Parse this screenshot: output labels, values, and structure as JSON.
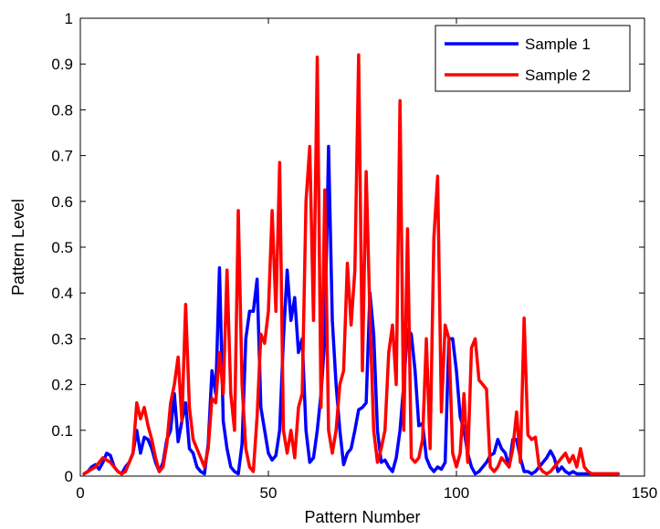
{
  "chart_data": {
    "type": "line",
    "title": "",
    "xlabel": "Pattern Number",
    "ylabel": "Pattern Level",
    "xlim": [
      0,
      150
    ],
    "ylim": [
      0,
      1
    ],
    "xticks": [
      0,
      50,
      100,
      150
    ],
    "yticks": [
      0,
      0.1,
      0.2,
      0.3,
      0.4,
      0.5,
      0.6,
      0.7,
      0.8,
      0.9,
      1
    ],
    "ytick_labels": [
      "0",
      "0.1",
      "0.2",
      "0.3",
      "0.4",
      "0.5",
      "0.6",
      "0.7",
      "0.8",
      "0.9",
      "1"
    ],
    "grid": false,
    "legend_position": "top-right",
    "series": [
      {
        "name": "Sample 1",
        "color": "#0000ff",
        "x": [
          1,
          2,
          3,
          4,
          5,
          6,
          7,
          8,
          9,
          10,
          11,
          12,
          13,
          14,
          15,
          16,
          17,
          18,
          19,
          20,
          21,
          22,
          23,
          24,
          25,
          26,
          27,
          28,
          29,
          30,
          31,
          32,
          33,
          34,
          35,
          36,
          37,
          38,
          39,
          40,
          41,
          42,
          43,
          44,
          45,
          46,
          47,
          48,
          49,
          50,
          51,
          52,
          53,
          54,
          55,
          56,
          57,
          58,
          59,
          60,
          61,
          62,
          63,
          64,
          65,
          66,
          67,
          68,
          69,
          70,
          71,
          72,
          73,
          74,
          75,
          76,
          77,
          78,
          79,
          80,
          81,
          82,
          83,
          84,
          85,
          86,
          87,
          88,
          89,
          90,
          91,
          92,
          93,
          94,
          95,
          96,
          97,
          98,
          99,
          100,
          101,
          102,
          103,
          104,
          105,
          106,
          107,
          108,
          109,
          110,
          111,
          112,
          113,
          114,
          115,
          116,
          117,
          118,
          119,
          120,
          121,
          122,
          123,
          124,
          125,
          126,
          127,
          128,
          129,
          130,
          131,
          132,
          133,
          134,
          135,
          136,
          137,
          138,
          139,
          140,
          141,
          142,
          143
        ],
        "values": [
          0.005,
          0.01,
          0.02,
          0.025,
          0.015,
          0.03,
          0.05,
          0.045,
          0.02,
          0.01,
          0.005,
          0.02,
          0.03,
          0.05,
          0.1,
          0.05,
          0.085,
          0.08,
          0.06,
          0.03,
          0.01,
          0.03,
          0.08,
          0.1,
          0.18,
          0.075,
          0.12,
          0.16,
          0.06,
          0.05,
          0.02,
          0.01,
          0.005,
          0.07,
          0.23,
          0.18,
          0.455,
          0.12,
          0.06,
          0.02,
          0.01,
          0.005,
          0.07,
          0.3,
          0.36,
          0.36,
          0.43,
          0.15,
          0.1,
          0.05,
          0.035,
          0.045,
          0.1,
          0.3,
          0.45,
          0.34,
          0.39,
          0.27,
          0.3,
          0.1,
          0.03,
          0.04,
          0.1,
          0.18,
          0.3,
          0.72,
          0.34,
          0.2,
          0.1,
          0.025,
          0.05,
          0.06,
          0.1,
          0.145,
          0.15,
          0.16,
          0.4,
          0.31,
          0.1,
          0.03,
          0.035,
          0.02,
          0.01,
          0.04,
          0.1,
          0.2,
          0.32,
          0.31,
          0.23,
          0.11,
          0.115,
          0.04,
          0.02,
          0.01,
          0.02,
          0.015,
          0.03,
          0.3,
          0.3,
          0.23,
          0.13,
          0.1,
          0.05,
          0.02,
          0.005,
          0.01,
          0.02,
          0.03,
          0.045,
          0.05,
          0.08,
          0.06,
          0.05,
          0.02,
          0.08,
          0.08,
          0.04,
          0.01,
          0.01,
          0.005,
          0.01,
          0.02,
          0.03,
          0.04,
          0.055,
          0.04,
          0.01,
          0.02,
          0.01,
          0.005,
          0.01,
          0.005,
          0.005,
          0.005,
          0.005,
          0.005,
          0.005,
          0.005,
          0.005,
          0.005,
          0.005,
          0.005,
          0.005
        ]
      },
      {
        "name": "Sample 2",
        "color": "#ff0000",
        "x": [
          1,
          2,
          3,
          4,
          5,
          6,
          7,
          8,
          9,
          10,
          11,
          12,
          13,
          14,
          15,
          16,
          17,
          18,
          19,
          20,
          21,
          22,
          23,
          24,
          25,
          26,
          27,
          28,
          29,
          30,
          31,
          32,
          33,
          34,
          35,
          36,
          37,
          38,
          39,
          40,
          41,
          42,
          43,
          44,
          45,
          46,
          47,
          48,
          49,
          50,
          51,
          52,
          53,
          54,
          55,
          56,
          57,
          58,
          59,
          60,
          61,
          62,
          63,
          64,
          65,
          66,
          67,
          68,
          69,
          70,
          71,
          72,
          73,
          74,
          75,
          76,
          77,
          78,
          79,
          80,
          81,
          82,
          83,
          84,
          85,
          86,
          87,
          88,
          89,
          90,
          91,
          92,
          93,
          94,
          95,
          96,
          97,
          98,
          99,
          100,
          101,
          102,
          103,
          104,
          105,
          106,
          107,
          108,
          109,
          110,
          111,
          112,
          113,
          114,
          115,
          116,
          117,
          118,
          119,
          120,
          121,
          122,
          123,
          124,
          125,
          126,
          127,
          128,
          129,
          130,
          131,
          132,
          133,
          134,
          135,
          136,
          137,
          138,
          139,
          140,
          141,
          142,
          143
        ],
        "values": [
          0.005,
          0.01,
          0.015,
          0.02,
          0.03,
          0.04,
          0.035,
          0.03,
          0.02,
          0.01,
          0.005,
          0.01,
          0.03,
          0.05,
          0.16,
          0.125,
          0.15,
          0.11,
          0.08,
          0.04,
          0.01,
          0.02,
          0.07,
          0.16,
          0.2,
          0.26,
          0.12,
          0.375,
          0.15,
          0.08,
          0.06,
          0.04,
          0.02,
          0.06,
          0.17,
          0.16,
          0.27,
          0.18,
          0.45,
          0.18,
          0.1,
          0.58,
          0.2,
          0.06,
          0.02,
          0.01,
          0.13,
          0.31,
          0.29,
          0.36,
          0.58,
          0.36,
          0.685,
          0.1,
          0.05,
          0.1,
          0.04,
          0.15,
          0.18,
          0.6,
          0.72,
          0.34,
          0.915,
          0.15,
          0.625,
          0.1,
          0.05,
          0.1,
          0.2,
          0.23,
          0.465,
          0.33,
          0.45,
          0.92,
          0.23,
          0.665,
          0.35,
          0.1,
          0.03,
          0.06,
          0.1,
          0.27,
          0.33,
          0.2,
          0.82,
          0.1,
          0.54,
          0.04,
          0.03,
          0.04,
          0.08,
          0.3,
          0.06,
          0.52,
          0.655,
          0.14,
          0.33,
          0.3,
          0.05,
          0.02,
          0.05,
          0.18,
          0.03,
          0.28,
          0.3,
          0.21,
          0.2,
          0.19,
          0.02,
          0.01,
          0.02,
          0.04,
          0.03,
          0.02,
          0.06,
          0.14,
          0.03,
          0.345,
          0.09,
          0.08,
          0.085,
          0.02,
          0.01,
          0.005,
          0.01,
          0.02,
          0.03,
          0.04,
          0.05,
          0.03,
          0.045,
          0.02,
          0.06,
          0.02,
          0.01,
          0.005,
          0.005,
          0.005,
          0.005,
          0.005,
          0.005,
          0.005,
          0.005
        ]
      }
    ]
  }
}
